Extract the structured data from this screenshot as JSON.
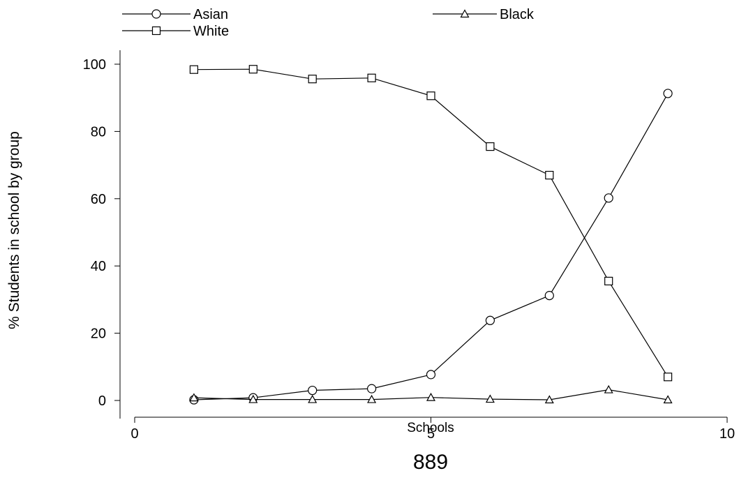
{
  "chart_data": {
    "type": "line",
    "xlabel": "Schools",
    "ylabel": "% Students in school by group",
    "xlim": [
      0,
      10
    ],
    "ylim": [
      0,
      100
    ],
    "xticks": [
      0,
      5,
      10
    ],
    "yticks": [
      0,
      20,
      40,
      60,
      80,
      100
    ],
    "grid": false,
    "legend_position": "top",
    "x": [
      1,
      2,
      3,
      4,
      5,
      6,
      7,
      8,
      9
    ],
    "series": [
      {
        "name": "Asian",
        "marker": "circle",
        "values": [
          0.2,
          0.8,
          3.0,
          3.5,
          7.7,
          23.8,
          31.2,
          60.2,
          91.3
        ]
      },
      {
        "name": "Black",
        "marker": "triangle",
        "values": [
          0.8,
          0.3,
          0.3,
          0.3,
          0.9,
          0.4,
          0.2,
          3.2,
          0.2
        ]
      },
      {
        "name": "White",
        "marker": "square",
        "values": [
          98.4,
          98.5,
          95.6,
          95.9,
          90.6,
          75.5,
          67.0,
          35.5,
          7.0
        ]
      }
    ]
  },
  "page_number": "889"
}
